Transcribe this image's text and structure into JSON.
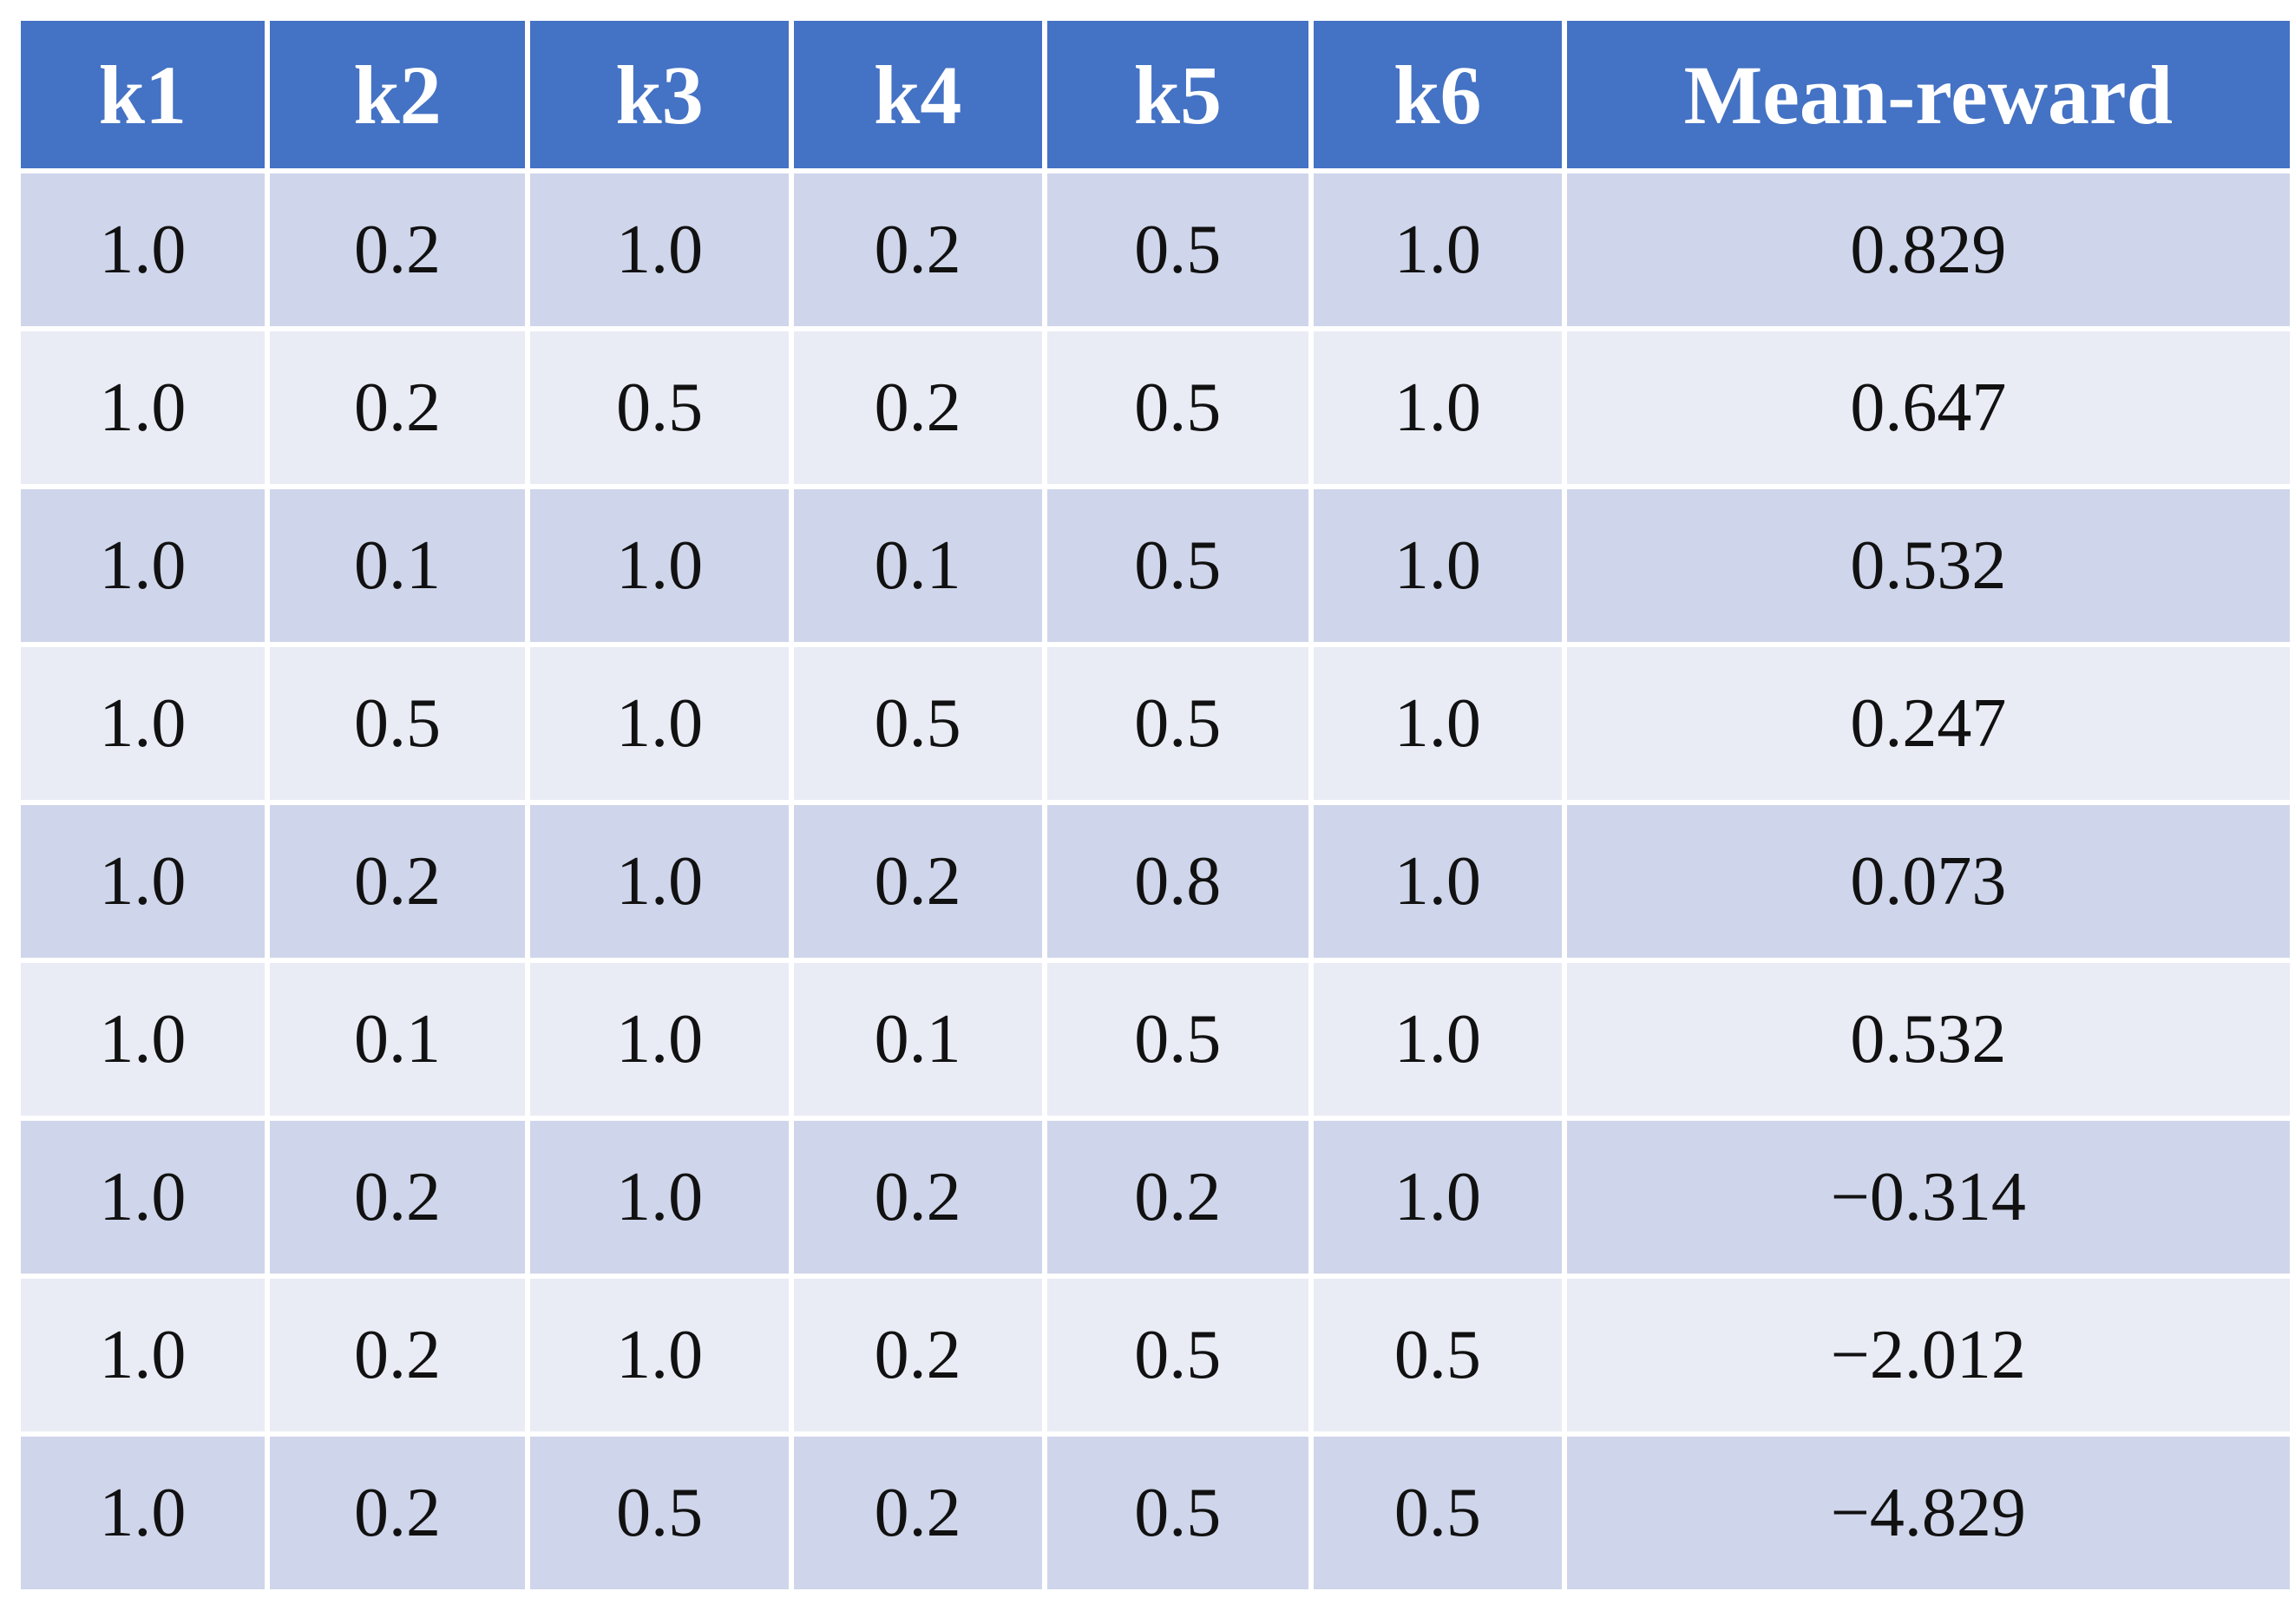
{
  "table": {
    "header": [
      "k1",
      "k2",
      "k3",
      "k4",
      "k5",
      "k6",
      "Mean-reward"
    ],
    "rows": [
      [
        "1.0",
        "0.2",
        "1.0",
        "0.2",
        "0.5",
        "1.0",
        "0.829"
      ],
      [
        "1.0",
        "0.2",
        "0.5",
        "0.2",
        "0.5",
        "1.0",
        "0.647"
      ],
      [
        "1.0",
        "0.1",
        "1.0",
        "0.1",
        "0.5",
        "1.0",
        "0.532"
      ],
      [
        "1.0",
        "0.5",
        "1.0",
        "0.5",
        "0.5",
        "1.0",
        "0.247"
      ],
      [
        "1.0",
        "0.2",
        "1.0",
        "0.2",
        "0.8",
        "1.0",
        "0.073"
      ],
      [
        "1.0",
        "0.1",
        "1.0",
        "0.1",
        "0.5",
        "1.0",
        "0.532"
      ],
      [
        "1.0",
        "0.2",
        "1.0",
        "0.2",
        "0.2",
        "1.0",
        "−0.314"
      ],
      [
        "1.0",
        "0.2",
        "1.0",
        "0.2",
        "0.5",
        "0.5",
        "−2.012"
      ],
      [
        "1.0",
        "0.2",
        "0.5",
        "0.2",
        "0.5",
        "0.5",
        "−4.829"
      ]
    ]
  }
}
